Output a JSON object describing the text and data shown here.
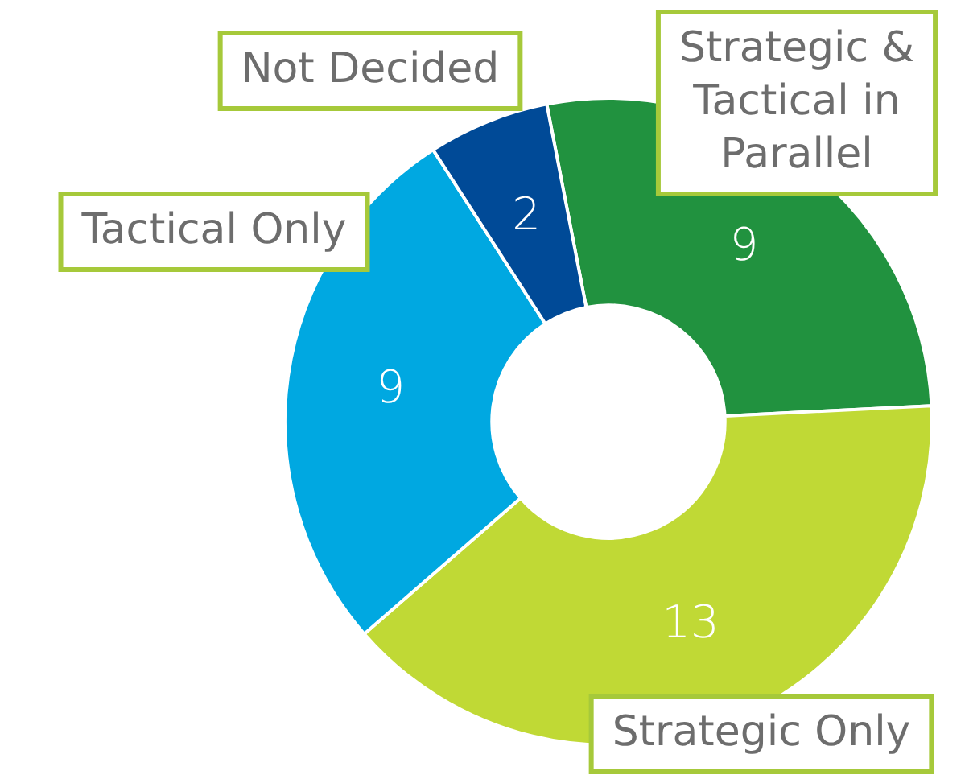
{
  "chart_data": {
    "type": "donut",
    "categories": [
      "Strategic & Tactical in Parallel",
      "Strategic Only",
      "Tactical Only",
      "Not Decided"
    ],
    "values": [
      9,
      13,
      9,
      2
    ],
    "colors": [
      "#21923f",
      "#c0d935",
      "#00a8e1",
      "#004a97"
    ],
    "data_labels": true,
    "legend": false
  }
}
